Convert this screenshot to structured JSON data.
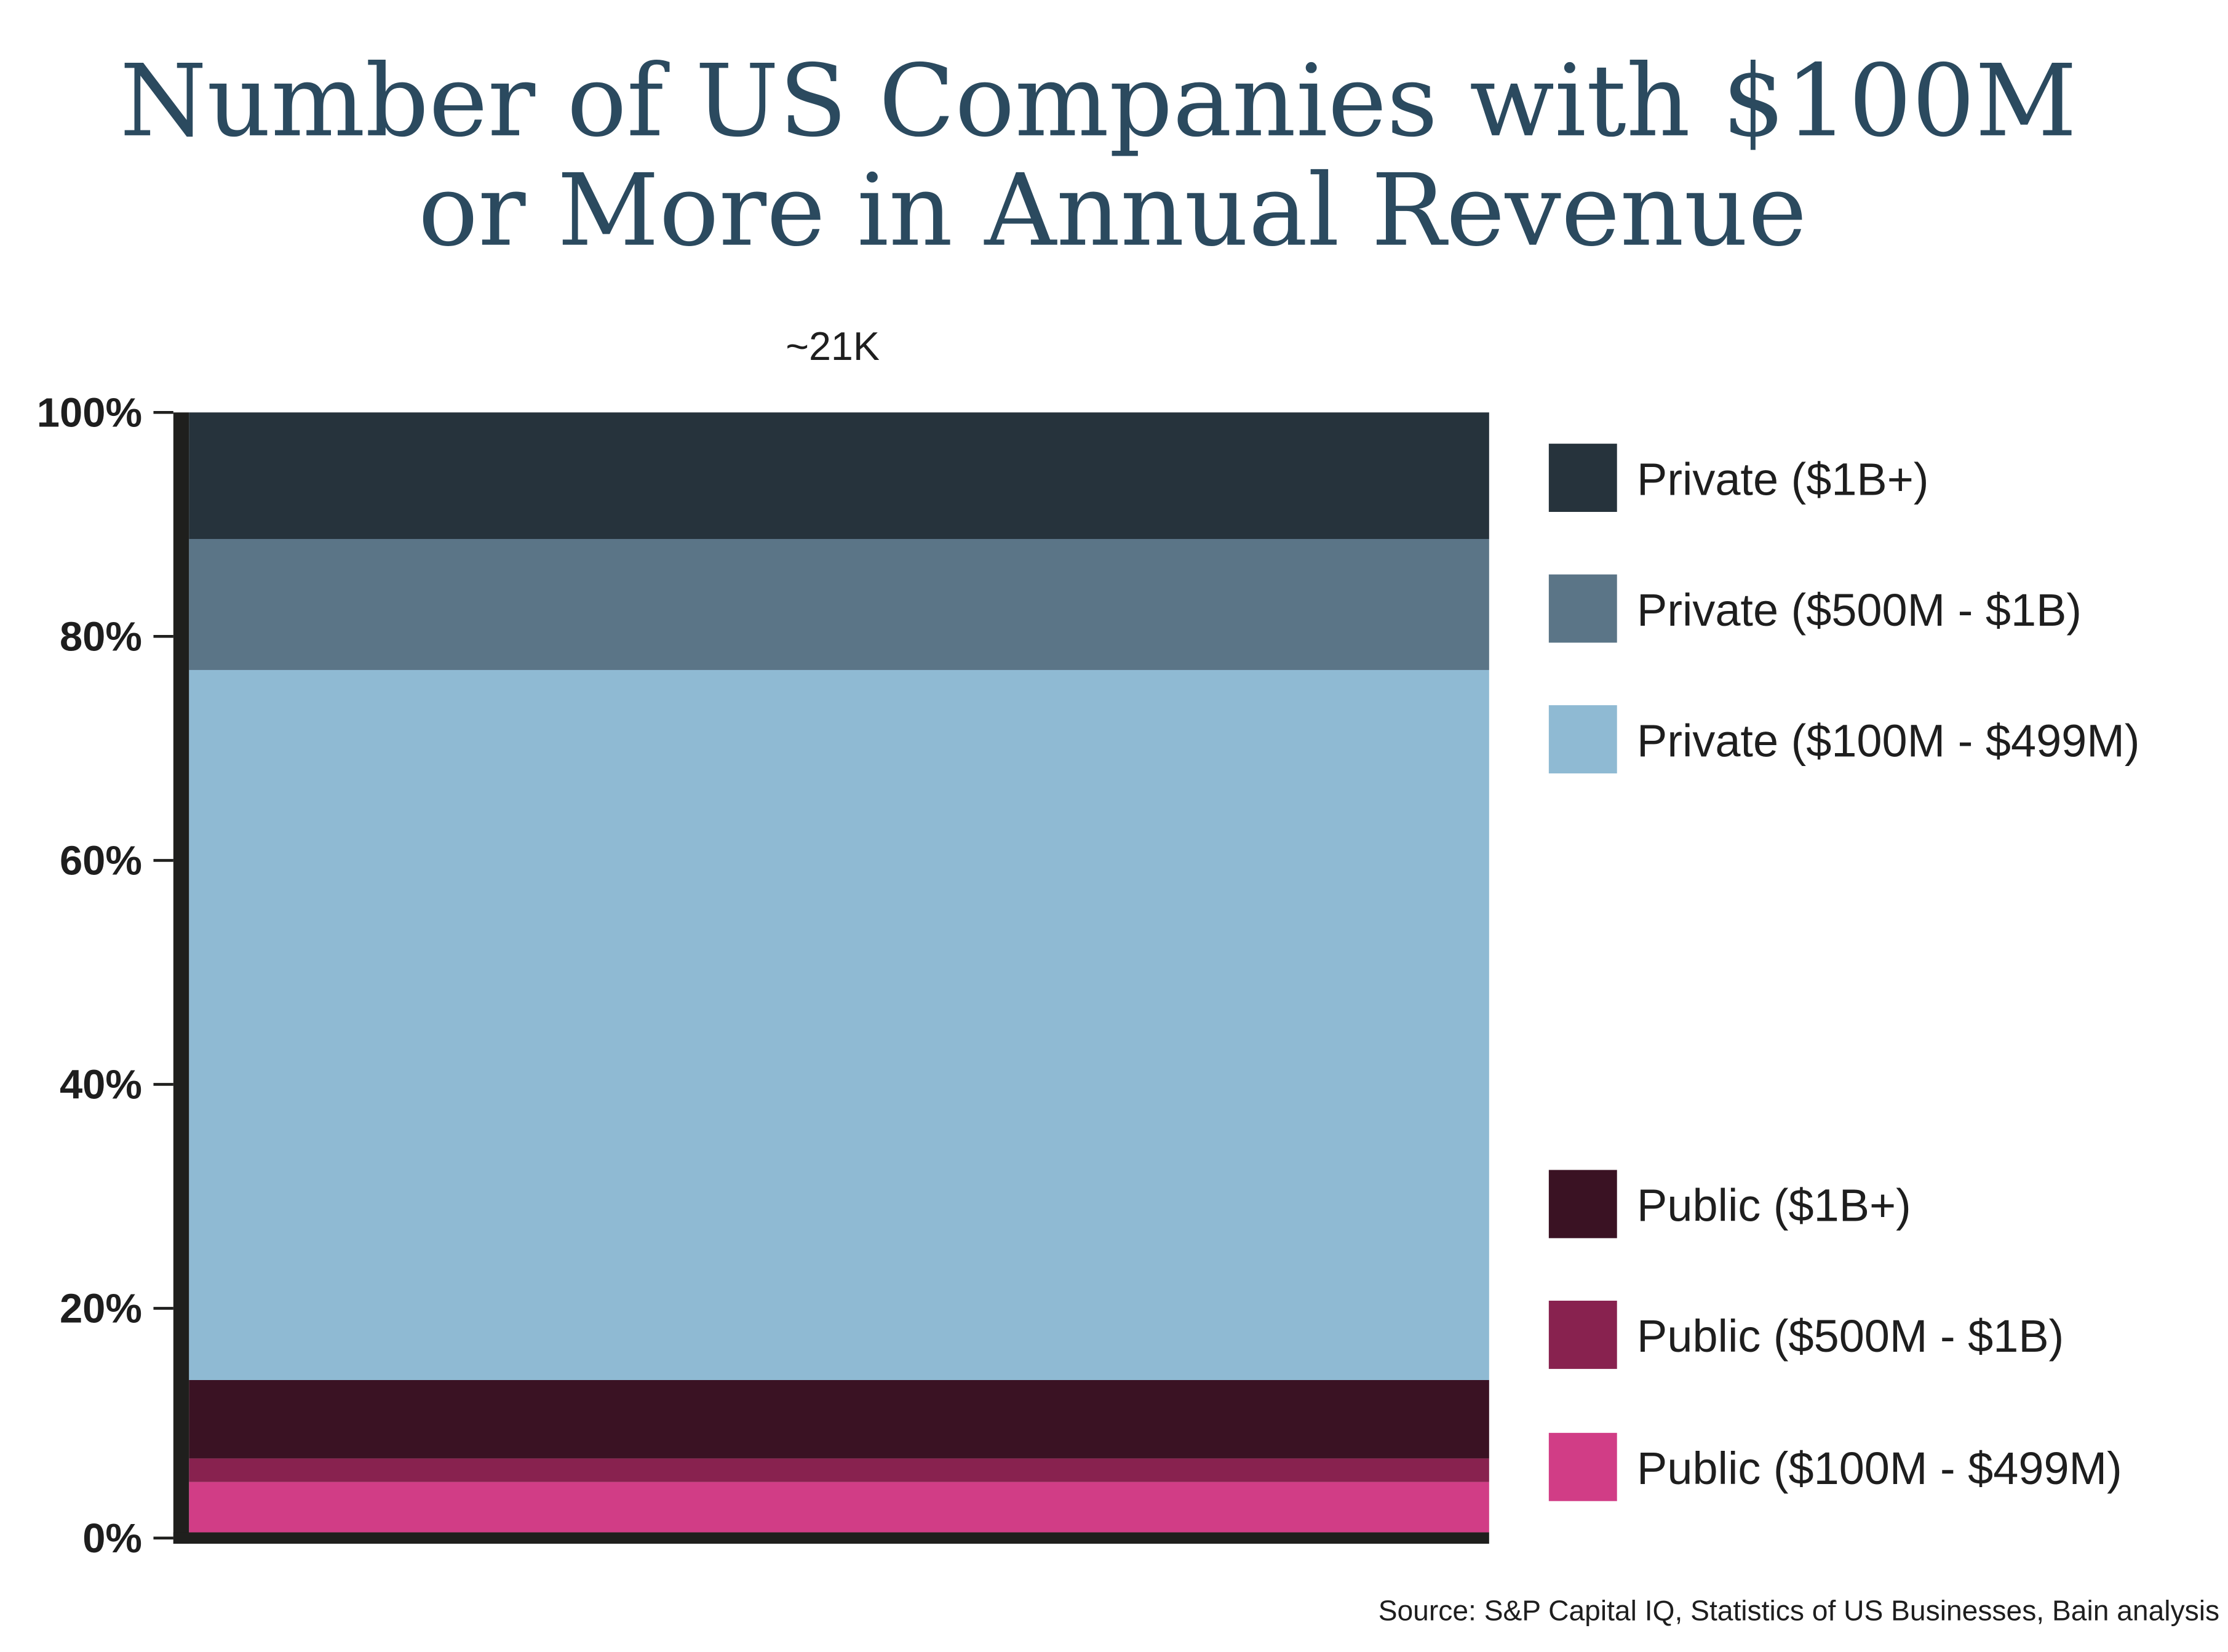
{
  "chart_data": {
    "type": "bar",
    "stacked": true,
    "normalized": true,
    "title": [
      "Number of US Companies with $100M",
      "or More in Annual Revenue"
    ],
    "categories": [
      ""
    ],
    "bar_total_label": "~21K",
    "ylim": [
      0,
      100
    ],
    "y_ticks": [
      "0%",
      "20%",
      "40%",
      "60%",
      "80%",
      "100%"
    ],
    "y_tick_values": [
      0,
      20,
      40,
      60,
      80,
      100
    ],
    "grid": false,
    "legend_position": "right",
    "series": [
      {
        "name": "Public ($100M - $499M)",
        "values": [
          4.5
        ],
        "color": "#d13d86"
      },
      {
        "name": "Public ($500M - $1B)",
        "values": [
          2.1
        ],
        "color": "#88224f"
      },
      {
        "name": "Public ($1B+)",
        "values": [
          7.0
        ],
        "color": "#3a1223"
      },
      {
        "name": "Private ($100M - $499M)",
        "values": [
          63.4
        ],
        "color": "#8fbad3"
      },
      {
        "name": "Private ($500M - $1B)",
        "values": [
          11.7
        ],
        "color": "#5b7587"
      },
      {
        "name": "Private ($1B+)",
        "values": [
          11.3
        ],
        "color": "#26333c"
      }
    ],
    "legend_order": [
      "Private ($1B+)",
      "Private ($500M - $1B)",
      "Private ($100M - $499M)",
      "Public ($1B+)",
      "Public ($500M - $1B)",
      "Public ($100M - $499M)"
    ],
    "source": "Source: S&P Capital IQ, Statistics of US Businesses, Bain analysis"
  }
}
